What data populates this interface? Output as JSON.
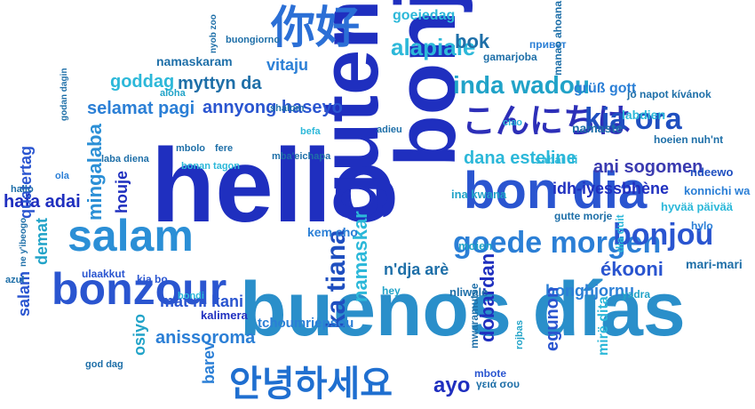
{
  "title": "",
  "colors": {
    "background": "#ffffff",
    "palette": [
      "#1f2fbf",
      "#2a55d0",
      "#2b7fd6",
      "#21a3c8",
      "#2cb8d9",
      "#1e6fa8",
      "#3a3ab0",
      "#0f3c8c"
    ]
  },
  "words": [
    {
      "text": "hello",
      "color": "#1f2fbf",
      "vertical": false
    },
    {
      "text": "bonjour",
      "color": "#1f2fbf",
      "vertical": true
    },
    {
      "text": "guten tag",
      "color": "#1f2fbf",
      "vertical": true
    },
    {
      "text": "buenos días",
      "color": "#2a8fca",
      "vertical": false
    },
    {
      "text": "bon dia",
      "color": "#2a55d0",
      "vertical": false
    },
    {
      "text": "你好",
      "color": "#2b6fd6",
      "vertical": false
    },
    {
      "text": "안녕하세요",
      "color": "#1f6fd0",
      "vertical": false
    },
    {
      "text": "こんにちは",
      "color": "#2d2fb8",
      "vertical": false
    },
    {
      "text": "salam",
      "color": "#2b8fd6",
      "vertical": false
    },
    {
      "text": "bonzour",
      "color": "#2a55d0",
      "vertical": false
    },
    {
      "text": "goede morgen",
      "color": "#2b7fd6",
      "vertical": false
    },
    {
      "text": "kia ora",
      "color": "#1f4fc0",
      "vertical": false
    },
    {
      "text": "bonjou",
      "color": "#2a55d0",
      "vertical": false
    },
    {
      "text": "inda wadou",
      "color": "#21a3c8",
      "vertical": false
    },
    {
      "text": "alapiale",
      "color": "#2cb8d9",
      "vertical": false
    },
    {
      "text": "bok",
      "color": "#1e6fa8",
      "vertical": false
    },
    {
      "text": "selamat pagi",
      "color": "#2b7fd6",
      "vertical": false
    },
    {
      "text": "annyong haseyo",
      "color": "#2a55d0",
      "vertical": false
    },
    {
      "text": "goddag",
      "color": "#2cb8d9",
      "vertical": false
    },
    {
      "text": "myttyn da",
      "color": "#1e6fa8",
      "vertical": false
    },
    {
      "text": "vitaju",
      "color": "#2b7fd6",
      "vertical": false
    },
    {
      "text": "ani sogomen",
      "color": "#3a3ab0",
      "vertical": false
    },
    {
      "text": "dana esteline",
      "color": "#2cb8d9",
      "vertical": false
    },
    {
      "text": "idh-iyessbhène",
      "color": "#1f2fbf",
      "vertical": false
    },
    {
      "text": "ékooni",
      "color": "#2a55d0",
      "vertical": false
    },
    {
      "text": "bonghjornu",
      "color": "#2b7fd6",
      "vertical": false
    },
    {
      "text": "mat ni kani",
      "color": "#2a55d0",
      "vertical": false
    },
    {
      "text": "anissoroma",
      "color": "#2b7fd6",
      "vertical": false
    },
    {
      "text": "hafa adai",
      "color": "#1f2fbf",
      "vertical": false
    },
    {
      "text": "n'dja arè",
      "color": "#1e6fa8",
      "vertical": false
    },
    {
      "text": "ka tiana",
      "color": "#1f4fc0",
      "vertical": true
    },
    {
      "text": "namaskar",
      "color": "#2cb8d9",
      "vertical": true
    },
    {
      "text": "dobardan",
      "color": "#1f2fbf",
      "vertical": true
    },
    {
      "text": "egunon",
      "color": "#2a55d0",
      "vertical": true
    },
    {
      "text": "mingalaba",
      "color": "#2b8fd6",
      "vertical": true
    },
    {
      "text": "houje",
      "color": "#1f2fbf",
      "vertical": true
    },
    {
      "text": "demat",
      "color": "#21a3c8",
      "vertical": true
    },
    {
      "text": "salam",
      "color": "#2a55d0",
      "vertical": true
    },
    {
      "text": "barev",
      "color": "#2b7fd6",
      "vertical": true
    },
    {
      "text": "osiyo",
      "color": "#21a3c8",
      "vertical": true
    },
    {
      "text": "quatertag",
      "color": "#2a55d0",
      "vertical": true
    },
    {
      "text": "mirë dita",
      "color": "#2cb8d9",
      "vertical": true
    },
    {
      "text": "ayo",
      "color": "#1f2fbf",
      "vertical": false
    },
    {
      "text": "kem cho",
      "color": "#2b7fd6",
      "vertical": false
    },
    {
      "text": "namaste",
      "color": "#1e6fa8",
      "vertical": false
    },
    {
      "text": "grüß gott",
      "color": "#2b7fd6",
      "vertical": false
    },
    {
      "text": "labdien",
      "color": "#2cb8d9",
      "vertical": false
    },
    {
      "text": "namaskaram",
      "color": "#1e6fa8",
      "vertical": false
    },
    {
      "text": "ina kwana",
      "color": "#21a3c8",
      "vertical": false
    },
    {
      "text": "sabai di",
      "color": "#2cb8d9",
      "vertical": false
    },
    {
      "text": "gutte morje",
      "color": "#1e6fa8",
      "vertical": false
    },
    {
      "text": "hyvää päivää",
      "color": "#2cb8d9",
      "vertical": false
    },
    {
      "text": "konnichi wa",
      "color": "#2b7fd6",
      "vertical": false
    },
    {
      "text": "ndeewo",
      "color": "#1f4fc0",
      "vertical": false
    },
    {
      "text": "hoeien nuh'nt",
      "color": "#1e6fa8",
      "vertical": false
    },
    {
      "text": "hylo",
      "color": "#2b7fd6",
      "vertical": false
    },
    {
      "text": "mari-mari",
      "color": "#1e6fa8",
      "vertical": false
    },
    {
      "text": "yadra",
      "color": "#21a3c8",
      "vertical": false
    },
    {
      "text": "tchoumriepsou",
      "color": "#2b7fd6",
      "vertical": false
    },
    {
      "text": "kalimera",
      "color": "#1f2fbf",
      "vertical": false
    },
    {
      "text": "ulaakkut",
      "color": "#2a55d0",
      "vertical": false
    },
    {
      "text": "kia bo",
      "color": "#2a55d0",
      "vertical": false
    },
    {
      "text": "bondi",
      "color": "#2cb8d9",
      "vertical": false
    },
    {
      "text": "hey",
      "color": "#21a3c8",
      "vertical": false
    },
    {
      "text": "nliwale",
      "color": "#1e6fa8",
      "vertical": false
    },
    {
      "text": "moien",
      "color": "#21a3c8",
      "vertical": false
    },
    {
      "text": "mbote",
      "color": "#2a55d0",
      "vertical": false
    },
    {
      "text": "γειά σου",
      "color": "#1e6fa8",
      "vertical": false
    },
    {
      "text": "mwaramutse",
      "color": "#1e6fa8",
      "vertical": true
    },
    {
      "text": "rojbas",
      "color": "#21a3c8",
      "vertical": true
    },
    {
      "text": "goeiedag",
      "color": "#2cb8d9",
      "vertical": false
    },
    {
      "text": "gamarjoba",
      "color": "#1e6fa8",
      "vertical": false
    },
    {
      "text": "привет",
      "color": "#2b7fd6",
      "vertical": false
    },
    {
      "text": "manao ahoana",
      "color": "#1e6fa8",
      "vertical": true
    },
    {
      "text": "jó napot kívánok",
      "color": "#1e6fa8",
      "vertical": false
    },
    {
      "text": "buongiorno",
      "color": "#1e6fa8",
      "vertical": false
    },
    {
      "text": "aloha",
      "color": "#21a3c8",
      "vertical": false
    },
    {
      "text": "shalom",
      "color": "#1e6fa8",
      "vertical": false
    },
    {
      "text": "mbolo",
      "color": "#1e6fa8",
      "vertical": false
    },
    {
      "text": "fere",
      "color": "#1e6fa8",
      "vertical": false
    },
    {
      "text": "bonan tagon",
      "color": "#2cb8d9",
      "vertical": false
    },
    {
      "text": "mba'eichapa",
      "color": "#1e6fa8",
      "vertical": false
    },
    {
      "text": "laba diena",
      "color": "#1e6fa8",
      "vertical": false
    },
    {
      "text": "befa",
      "color": "#2cb8d9",
      "vertical": false
    },
    {
      "text": "adieu",
      "color": "#1e6fa8",
      "vertical": false
    },
    {
      "text": "ciao",
      "color": "#2cb8d9",
      "vertical": false
    },
    {
      "text": "hallo",
      "color": "#1e6fa8",
      "vertical": false
    },
    {
      "text": "ola",
      "color": "#2b7fd6",
      "vertical": false
    },
    {
      "text": "azul",
      "color": "#1e6fa8",
      "vertical": false
    },
    {
      "text": "god dag",
      "color": "#1e6fa8",
      "vertical": false
    },
    {
      "text": "dia duit",
      "color": "#2cb8d9",
      "vertical": true
    },
    {
      "text": "ne y'ibeogo",
      "color": "#1e6fa8",
      "vertical": true
    },
    {
      "text": "nyob zoo",
      "color": "#1e6fa8",
      "vertical": true
    },
    {
      "text": "godan dagin",
      "color": "#1e6fa8",
      "vertical": true
    }
  ]
}
